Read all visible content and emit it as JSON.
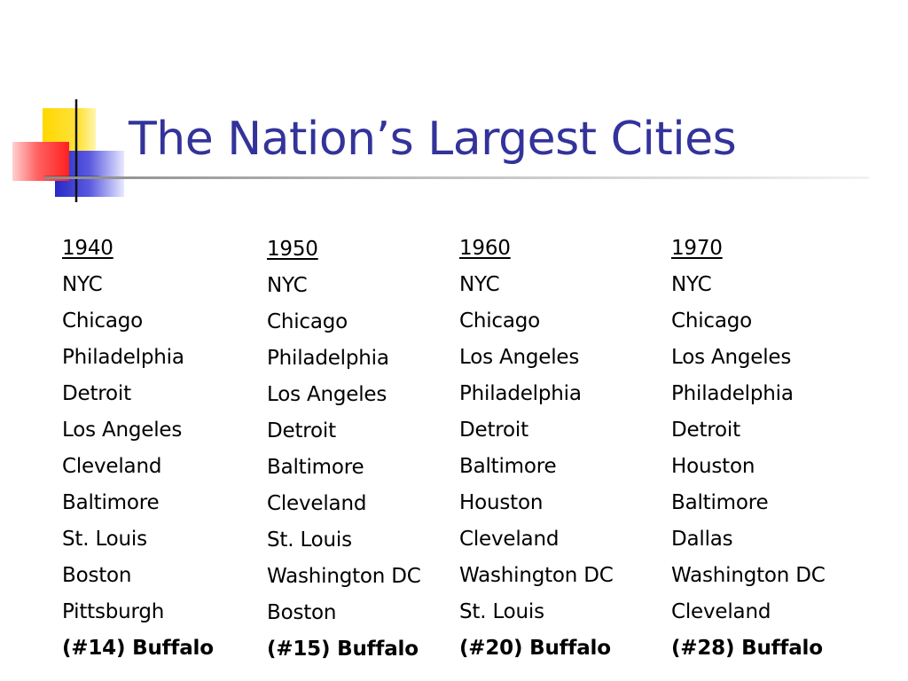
{
  "slide": {
    "title": "The Nation’s Largest Cities",
    "colors": {
      "title": "#33339a",
      "yellow": "#ffd700",
      "red": "#ff3a3a",
      "blue": "#3333cc"
    },
    "columns": [
      {
        "year": "1940",
        "cities": [
          "NYC",
          "Chicago",
          "Philadelphia",
          "Detroit",
          "Los Angeles",
          "Cleveland",
          "Baltimore",
          "St. Louis",
          "Boston",
          "Pittsburgh"
        ],
        "buffalo": "(#14) Buffalo"
      },
      {
        "year": "1950",
        "cities": [
          "NYC",
          "Chicago",
          "Philadelphia",
          "Los Angeles",
          "Detroit",
          "Baltimore",
          "Cleveland",
          "St. Louis",
          "Washington DC",
          "Boston"
        ],
        "buffalo": "(#15) Buffalo"
      },
      {
        "year": "1960",
        "cities": [
          "NYC",
          "Chicago",
          "Los Angeles",
          "Philadelphia",
          "Detroit",
          "Baltimore",
          "Houston",
          "Cleveland",
          "Washington DC",
          "St. Louis"
        ],
        "buffalo": "(#20) Buffalo"
      },
      {
        "year": "1970",
        "cities": [
          "NYC",
          "Chicago",
          "Los Angeles",
          "Philadelphia",
          "Detroit",
          "Houston",
          "Baltimore",
          "Dallas",
          "Washington DC",
          "Cleveland"
        ],
        "buffalo": "(#28) Buffalo"
      }
    ]
  }
}
